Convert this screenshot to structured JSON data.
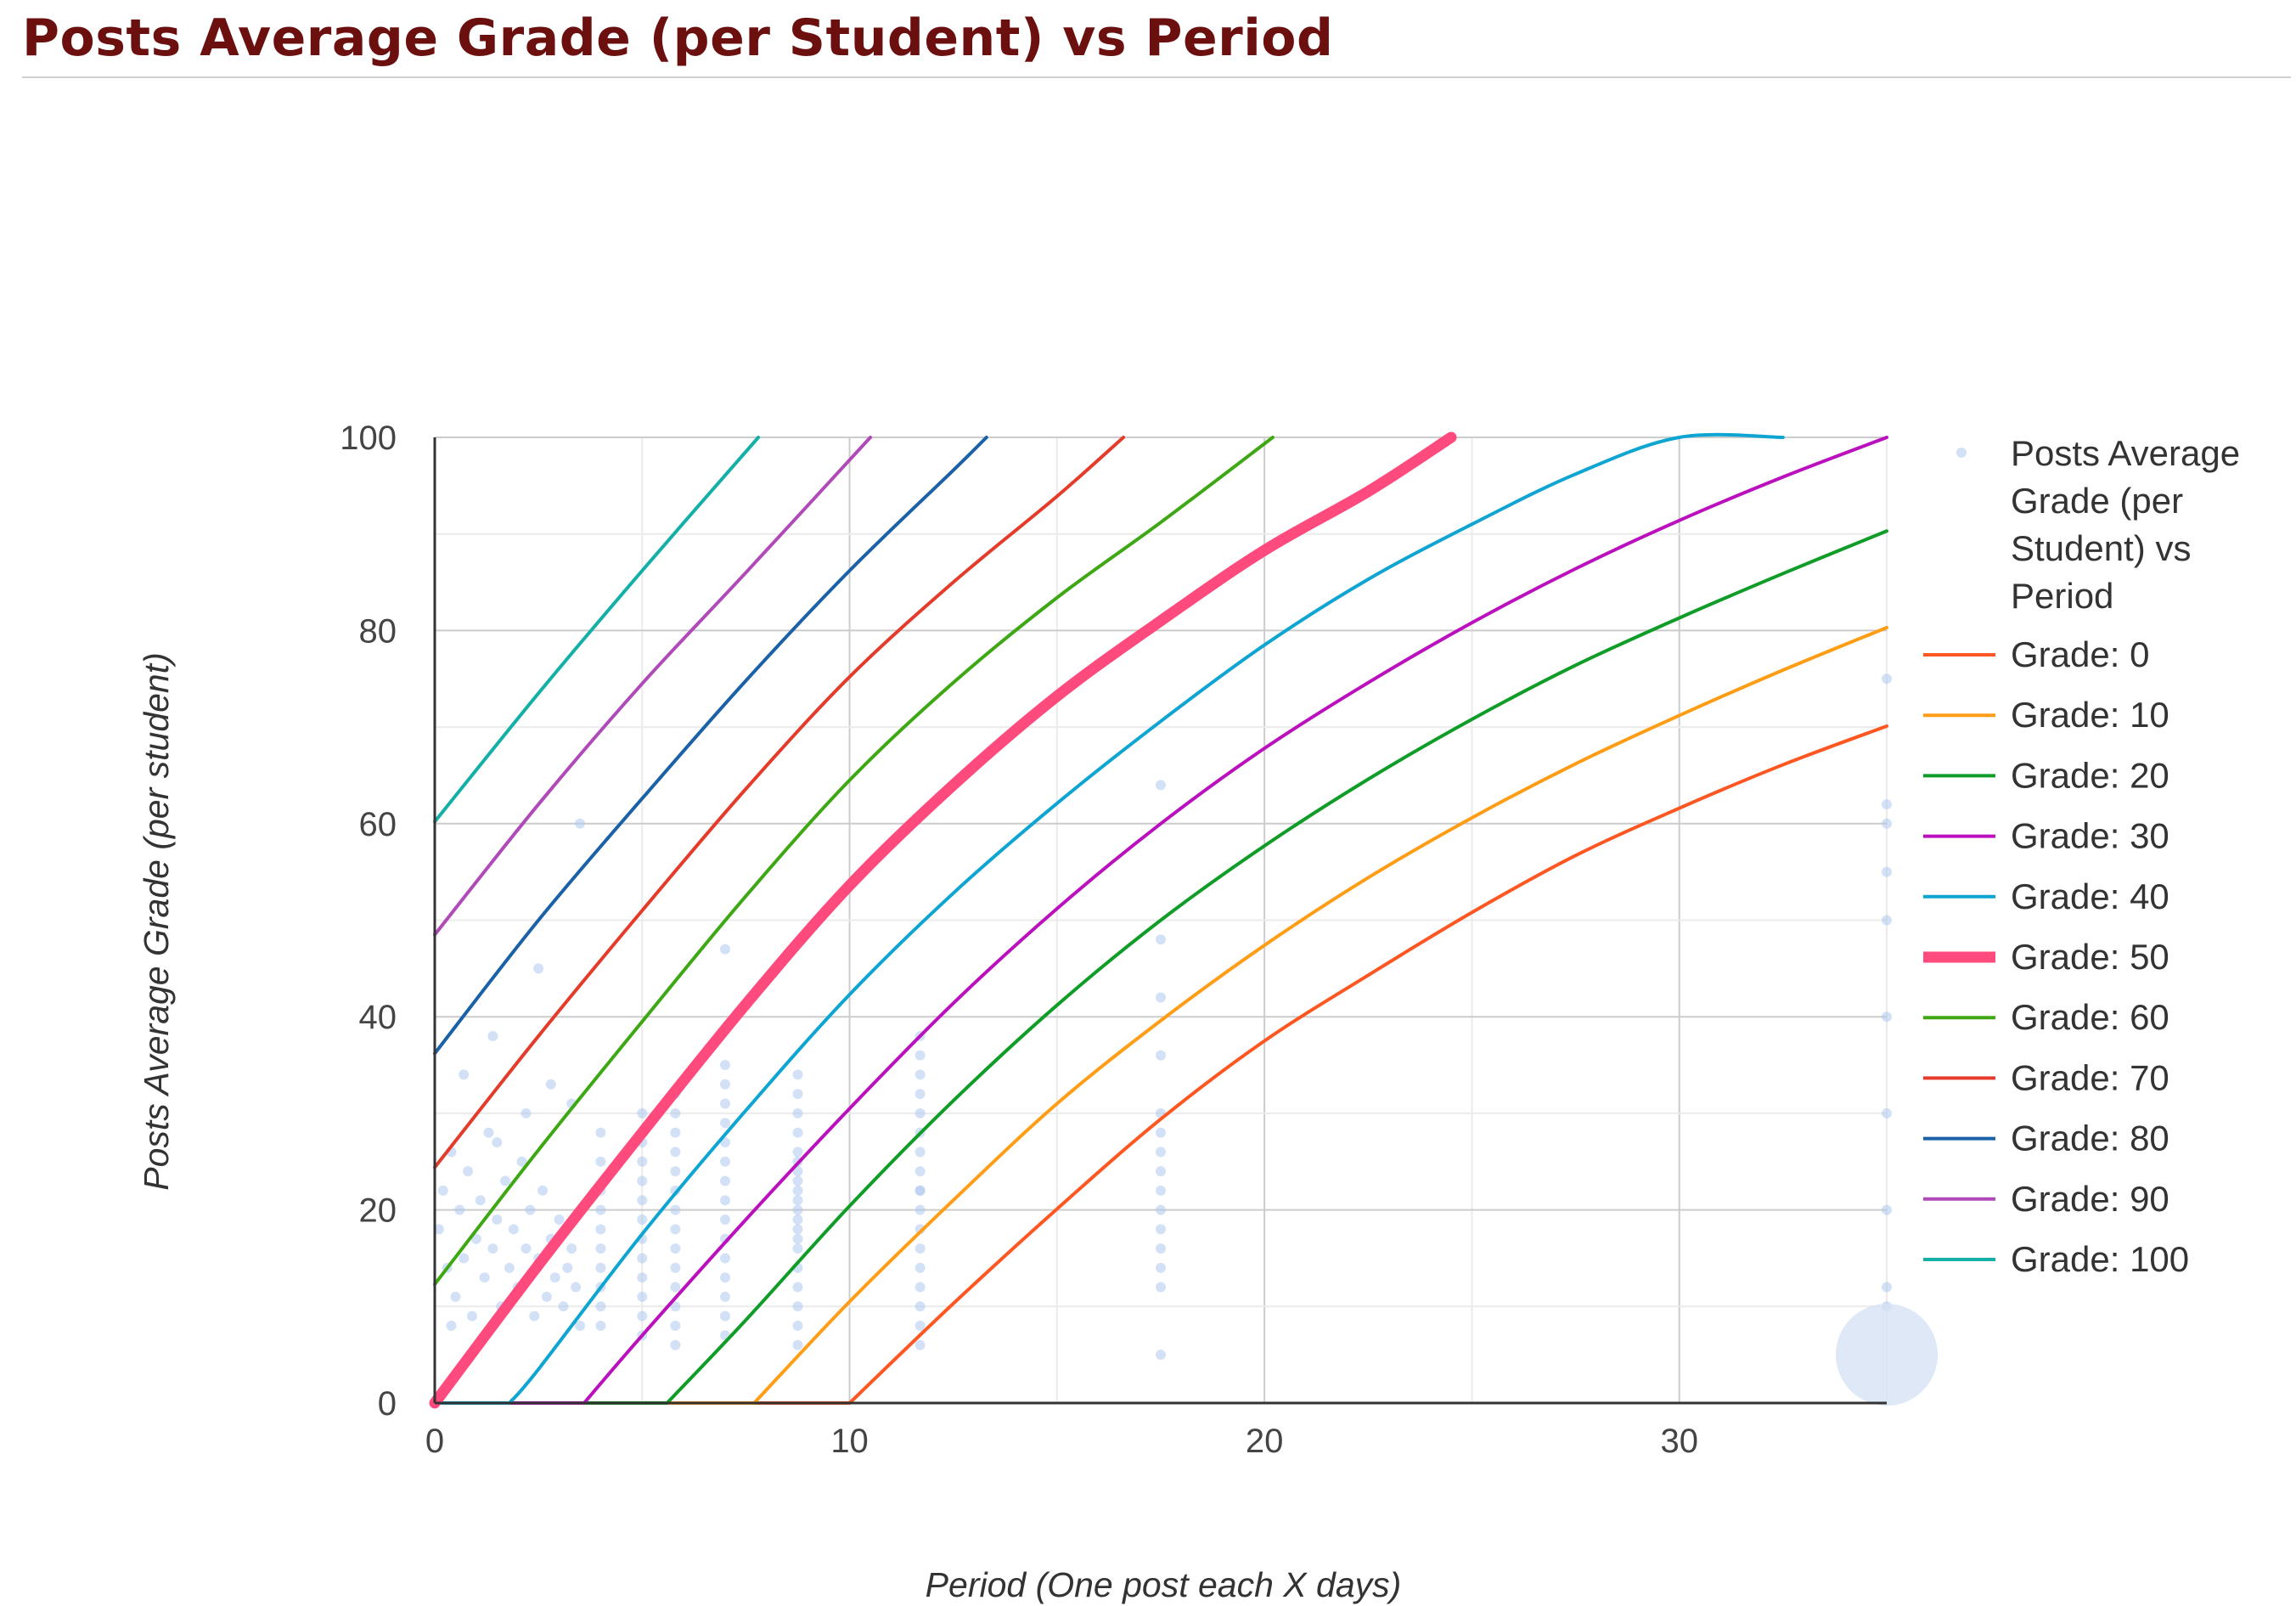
{
  "page": {
    "title": "Posts Average Grade (per Student) vs Period"
  },
  "chart_data": {
    "type": "line",
    "title": "",
    "xlabel": "Period (One post each X days)",
    "ylabel": "Posts Average Grade (per student)",
    "xlim": [
      0,
      35
    ],
    "ylim": [
      0,
      100
    ],
    "xticks": [
      0,
      10,
      20,
      30
    ],
    "yticks": [
      0,
      20,
      40,
      60,
      80,
      100
    ],
    "grid": true,
    "legend_position": "right",
    "scatter_series": {
      "name": "Posts Average Grade (per Student) vs Period",
      "color": "#aec8f0",
      "x": [
        0.1,
        0.2,
        0.3,
        0.4,
        0.5,
        0.6,
        0.7,
        0.8,
        0.9,
        1.0,
        1.1,
        1.2,
        1.3,
        1.4,
        1.5,
        1.6,
        1.7,
        1.8,
        1.9,
        2.0,
        2.1,
        2.2,
        2.3,
        2.4,
        2.5,
        2.6,
        2.7,
        2.8,
        2.9,
        3.0,
        3.1,
        3.2,
        3.3,
        3.4,
        3.5,
        1.4,
        2.2,
        3.5,
        0.7,
        1.5,
        2.5,
        3.3,
        0.4,
        2.8,
        4.0,
        4.0,
        4.0,
        4.0,
        4.0,
        4.0,
        4.0,
        4.0,
        4.0,
        4.0,
        5.0,
        5.0,
        5.0,
        5.0,
        5.0,
        5.0,
        5.0,
        5.0,
        5.0,
        5.0,
        5.0,
        5.0,
        5.8,
        5.8,
        5.8,
        5.8,
        5.8,
        5.8,
        5.8,
        5.8,
        5.8,
        5.8,
        5.8,
        5.8,
        5.8,
        5.8,
        7.0,
        7.0,
        7.0,
        7.0,
        7.0,
        7.0,
        7.0,
        7.0,
        7.0,
        7.0,
        7.0,
        7.0,
        7.0,
        7.0,
        7.0,
        7.0,
        8.75,
        8.75,
        8.75,
        8.75,
        8.75,
        8.75,
        8.75,
        8.75,
        8.75,
        8.75,
        8.75,
        8.75,
        8.75,
        8.75,
        8.75,
        8.75,
        8.75,
        8.75,
        8.75,
        8.75,
        11.7,
        11.7,
        11.7,
        11.7,
        11.7,
        11.7,
        11.7,
        11.7,
        11.7,
        11.7,
        11.7,
        11.7,
        11.7,
        11.7,
        11.7,
        11.7,
        11.7,
        11.7,
        17.5,
        17.5,
        17.5,
        17.5,
        17.5,
        17.5,
        17.5,
        17.5,
        17.5,
        17.5,
        17.5,
        17.5,
        17.5,
        17.5,
        17.5,
        35,
        35,
        35,
        35,
        35,
        35,
        35,
        35,
        35,
        35
      ],
      "y": [
        18,
        22,
        14,
        26,
        11,
        20,
        15,
        24,
        9,
        17,
        21,
        13,
        28,
        16,
        19,
        10,
        23,
        14,
        18,
        12,
        25,
        16,
        20,
        9,
        15,
        22,
        11,
        17,
        13,
        19,
        10,
        14,
        16,
        12,
        8,
        38,
        30,
        60,
        34,
        27,
        45,
        31,
        8,
        33,
        8,
        10,
        12,
        14,
        16,
        18,
        20,
        22,
        25,
        28,
        7,
        9,
        11,
        13,
        15,
        17,
        19,
        21,
        23,
        25,
        27,
        30,
        6,
        8,
        10,
        12,
        14,
        16,
        18,
        20,
        22,
        24,
        26,
        28,
        30,
        32,
        7,
        9,
        11,
        13,
        15,
        17,
        19,
        21,
        23,
        25,
        27,
        29,
        31,
        33,
        35,
        47,
        6,
        8,
        10,
        12,
        14,
        16,
        18,
        20,
        22,
        24,
        26,
        28,
        30,
        32,
        34,
        17,
        19,
        21,
        23,
        25,
        6,
        8,
        10,
        12,
        14,
        16,
        18,
        20,
        22,
        24,
        26,
        28,
        30,
        32,
        34,
        36,
        38,
        22,
        5,
        12,
        14,
        16,
        18,
        20,
        22,
        24,
        26,
        28,
        30,
        36,
        42,
        48,
        64,
        10,
        12,
        20,
        30,
        40,
        50,
        55,
        60,
        62,
        75
      ]
    },
    "highlight_bubble": {
      "x": 35,
      "y": 5,
      "color": "#d6e2f5"
    },
    "curve_model": {
      "formula": "y = min(100, max(0, 100*(1-exp(-k*x)) - (100-grade)*(1-exp(-k*35))*... ))"
    },
    "series": [
      {
        "name": "Grade: 0",
        "color": "#ff5722",
        "width": 4,
        "x": [
          10,
          12.5,
          15,
          17.5,
          20,
          22.5,
          25,
          27.5,
          30,
          32.5,
          35
        ],
        "y": [
          0,
          10.3,
          20.1,
          29.4,
          37.5,
          44.3,
          50.8,
          56.7,
          61.6,
          66.1,
          70.1
        ]
      },
      {
        "name": "Grade: 10",
        "color": "#ff9e16",
        "width": 4,
        "x": [
          7.7,
          10,
          12.5,
          15,
          17.5,
          20,
          22.5,
          25,
          27.5,
          30,
          32.5,
          35
        ],
        "y": [
          0,
          10.5,
          21.0,
          31.0,
          39.6,
          47.4,
          54.4,
          60.6,
          66.2,
          71.2,
          75.9,
          80.3
        ]
      },
      {
        "name": "Grade: 20",
        "color": "#0f9d28",
        "width": 4,
        "x": [
          5.6,
          7.5,
          10,
          12.5,
          15,
          17.5,
          20,
          22.5,
          25,
          27.5,
          30,
          32.5,
          35
        ],
        "y": [
          0,
          8.6,
          20.4,
          31.3,
          41.2,
          50.0,
          57.7,
          64.6,
          70.8,
          76.4,
          81.3,
          85.9,
          90.3
        ]
      },
      {
        "name": "Grade: 30",
        "color": "#bb10be",
        "width": 4,
        "x": [
          3.6,
          5,
          7.5,
          10,
          12.5,
          15,
          17.5,
          20,
          22.5,
          25,
          27.5,
          30,
          32.5,
          35
        ],
        "y": [
          0,
          7.0,
          19.0,
          30.5,
          41.4,
          51.2,
          60.0,
          67.8,
          74.6,
          80.8,
          86.4,
          91.4,
          95.9,
          100
        ]
      },
      {
        "name": "Grade: 40",
        "color": "#0ea5d2",
        "width": 4,
        "x": [
          1.8,
          2.5,
          5,
          7.5,
          10,
          12.5,
          15,
          17.5,
          20,
          22.5,
          25,
          27.5,
          30,
          32.5
        ],
        "y": [
          0,
          3.5,
          17.5,
          30.3,
          42.3,
          52.8,
          62.1,
          70.6,
          78.5,
          85.3,
          91.0,
          96.2,
          100,
          100
        ]
      },
      {
        "name": "Grade: 50",
        "color": "#ff4a7d",
        "width": 13,
        "x": [
          0,
          2.5,
          5,
          7.5,
          10,
          12.5,
          15,
          17.5,
          20,
          22.5,
          24.5
        ],
        "y": [
          0,
          14.3,
          28.0,
          41.3,
          53.6,
          64.0,
          73.2,
          81.0,
          88.3,
          94.4,
          100
        ]
      },
      {
        "name": "Grade: 60",
        "color": "#3ea814",
        "width": 4,
        "x": [
          0,
          2.5,
          5,
          7.5,
          10,
          12.5,
          15,
          17.5,
          20.2
        ],
        "y": [
          12.3,
          26.2,
          39.5,
          52.5,
          64.5,
          74.6,
          83.4,
          91.2,
          100
        ]
      },
      {
        "name": "Grade: 70",
        "color": "#e53b2b",
        "width": 4,
        "x": [
          0,
          2.5,
          5,
          7.5,
          10,
          12.5,
          15,
          16.6
        ],
        "y": [
          24.4,
          38.0,
          51.0,
          63.6,
          75.2,
          85.0,
          93.9,
          100
        ]
      },
      {
        "name": "Grade: 80",
        "color": "#1a61a8",
        "width": 4,
        "x": [
          0,
          2.5,
          5,
          7.5,
          10,
          12.5,
          13.3
        ],
        "y": [
          36.2,
          50.0,
          62.6,
          74.8,
          86.2,
          96.6,
          100
        ]
      },
      {
        "name": "Grade: 90",
        "color": "#b04ab8",
        "width": 4,
        "x": [
          0,
          2.5,
          5,
          7.5,
          10.5
        ],
        "y": [
          48.5,
          62.0,
          74.5,
          86.0,
          100
        ]
      },
      {
        "name": "Grade: 100",
        "color": "#14b0a8",
        "width": 4,
        "x": [
          0,
          2.5,
          5,
          7.8
        ],
        "y": [
          60.2,
          73.5,
          86.2,
          100
        ]
      }
    ]
  }
}
